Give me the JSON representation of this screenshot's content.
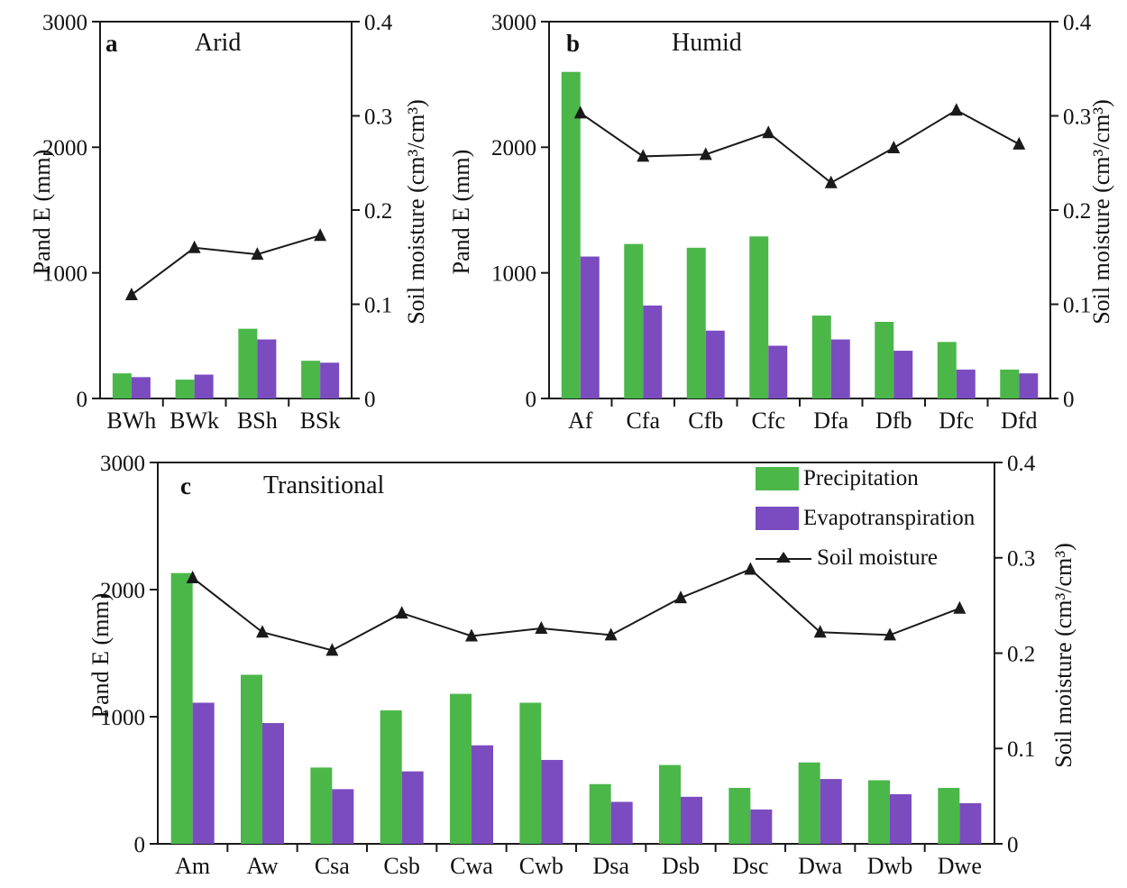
{
  "colors": {
    "precipitation": "#4bb749",
    "evapotranspiration": "#7a4cc0",
    "soil_moisture": "#1a1a1a",
    "frame": "#1a1a1a",
    "background": "#ffffff"
  },
  "axes": {
    "left_label": "Pand E (mm)",
    "right_label": "Soil moisture (cm³/cm³)",
    "left_range": [
      0,
      3000
    ],
    "right_range": [
      0,
      0.4
    ],
    "left_ticks": [
      0,
      1000,
      2000,
      3000
    ],
    "left_tick_labels": [
      "0",
      "1000",
      "2000",
      "3000"
    ],
    "right_ticks": [
      0,
      0.1,
      0.2,
      0.3,
      0.4
    ],
    "right_tick_labels": [
      "0",
      "0.1",
      "0.2",
      "0.3",
      "0.4"
    ]
  },
  "legend": {
    "items": [
      {
        "label": "Precipitation",
        "marker": "swatch",
        "color_key": "precipitation"
      },
      {
        "label": "Evapotranspiration",
        "marker": "swatch",
        "color_key": "evapotranspiration"
      },
      {
        "label": "Soil moisture",
        "marker": "line-triangle",
        "color_key": "soil_moisture"
      }
    ]
  },
  "chart_data": [
    {
      "id": "a",
      "type": "bar+line",
      "panel_letter": "a",
      "title": "Arid",
      "categories": [
        "BWh",
        "BWk",
        "BSh",
        "BSk"
      ],
      "ylabel_left": "Pand E (mm)",
      "ylabel_right": "Soil moisture (cm³/cm³)",
      "ylim_left": [
        0,
        3000
      ],
      "ylim_right": [
        0,
        0.4
      ],
      "series": [
        {
          "name": "Precipitation",
          "axis": "left",
          "values": [
            200,
            150,
            555,
            300
          ]
        },
        {
          "name": "Evapotranspiration",
          "axis": "left",
          "values": [
            170,
            190,
            470,
            285
          ]
        },
        {
          "name": "Soil moisture",
          "axis": "right",
          "values": [
            0.11,
            0.16,
            0.153,
            0.173
          ]
        }
      ]
    },
    {
      "id": "b",
      "type": "bar+line",
      "panel_letter": "b",
      "title": "Humid",
      "categories": [
        "Af",
        "Cfa",
        "Cfb",
        "Cfc",
        "Dfa",
        "Dfb",
        "Dfc",
        "Dfd"
      ],
      "ylabel_left": "Pand E (mm)",
      "ylabel_right": "Soil moisture (cm³/cm³)",
      "ylim_left": [
        0,
        3000
      ],
      "ylim_right": [
        0,
        0.4
      ],
      "series": [
        {
          "name": "Precipitation",
          "axis": "left",
          "values": [
            2600,
            1230,
            1200,
            1290,
            660,
            610,
            450,
            230
          ]
        },
        {
          "name": "Evapotranspiration",
          "axis": "left",
          "values": [
            1130,
            740,
            540,
            420,
            470,
            380,
            230,
            200
          ]
        },
        {
          "name": "Soil moisture",
          "axis": "right",
          "values": [
            0.303,
            0.257,
            0.259,
            0.282,
            0.229,
            0.266,
            0.306,
            0.27
          ]
        }
      ]
    },
    {
      "id": "c",
      "type": "bar+line",
      "panel_letter": "c",
      "title": "Transitional",
      "categories": [
        "Am",
        "Aw",
        "Csa",
        "Csb",
        "Cwa",
        "Cwb",
        "Dsa",
        "Dsb",
        "Dsc",
        "Dwa",
        "Dwb",
        "Dwe"
      ],
      "ylabel_left": "Pand E (mm)",
      "ylabel_right": "Soil moisture (cm³/cm³)",
      "ylim_left": [
        0,
        3000
      ],
      "ylim_right": [
        0,
        0.4
      ],
      "series": [
        {
          "name": "Precipitation",
          "axis": "left",
          "values": [
            2130,
            1330,
            600,
            1050,
            1180,
            1110,
            470,
            620,
            440,
            640,
            500,
            440
          ]
        },
        {
          "name": "Evapotranspiration",
          "axis": "left",
          "values": [
            1110,
            950,
            430,
            570,
            775,
            660,
            330,
            370,
            270,
            510,
            390,
            320
          ]
        },
        {
          "name": "Soil moisture",
          "axis": "right",
          "values": [
            0.279,
            0.222,
            0.203,
            0.242,
            0.218,
            0.226,
            0.219,
            0.258,
            0.288,
            0.222,
            0.219,
            0.247
          ]
        }
      ]
    }
  ]
}
